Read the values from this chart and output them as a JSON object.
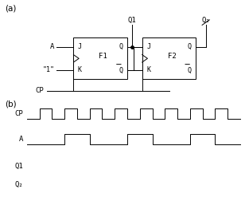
{
  "bg_color": "#ffffff",
  "line_color": "#000000",
  "fig_width": 3.08,
  "fig_height": 2.47,
  "dpi": 100,
  "label_a": "(a)",
  "label_b": "(b)",
  "ff1_label": "F1",
  "ff2_label": "F2",
  "cp_signal": [
    0,
    0,
    1,
    1,
    0,
    0,
    1,
    1,
    0,
    0,
    1,
    1,
    0,
    0,
    1,
    1,
    0,
    0,
    1,
    1,
    0,
    0,
    1,
    1,
    0,
    0,
    1,
    1,
    0,
    0,
    1,
    1,
    0,
    0
  ],
  "a_signal": [
    0,
    0,
    0,
    0,
    0,
    0,
    1,
    1,
    1,
    1,
    0,
    0,
    0,
    0,
    0,
    0,
    1,
    1,
    1,
    1,
    0,
    0,
    0,
    0,
    0,
    0,
    1,
    1,
    1,
    1,
    0,
    0,
    0,
    0
  ]
}
